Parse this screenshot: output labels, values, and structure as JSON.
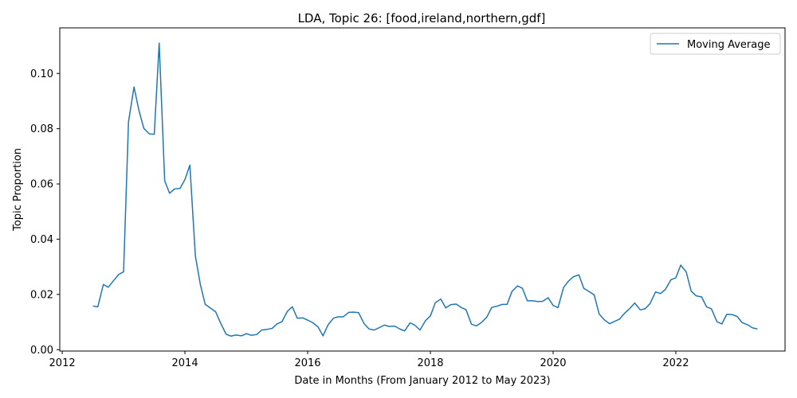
{
  "chart_data": {
    "type": "line",
    "title": "LDA, Topic 26: [food,ireland,northern,gdf]",
    "xlabel": "Date in Months (From January 2012 to May 2023)",
    "ylabel": "Topic Proportion",
    "xlim": [
      2011.96,
      2023.78
    ],
    "ylim": [
      -0.0005,
      0.1165
    ],
    "xticks": [
      2012,
      2014,
      2016,
      2018,
      2020,
      2022
    ],
    "yticks": [
      0.0,
      0.02,
      0.04,
      0.06,
      0.08,
      0.1
    ],
    "ytick_labels": [
      "0.00",
      "0.02",
      "0.04",
      "0.06",
      "0.08",
      "0.10"
    ],
    "grid": false,
    "legend_position": "top-right",
    "color": "#1f77b4",
    "series": [
      {
        "name": "Moving Average",
        "x": [
          2012.5,
          2012.58,
          2012.67,
          2012.75,
          2012.83,
          2012.92,
          2013.0,
          2013.08,
          2013.17,
          2013.25,
          2013.33,
          2013.42,
          2013.5,
          2013.58,
          2013.67,
          2013.75,
          2013.83,
          2013.92,
          2014.0,
          2014.08,
          2014.17,
          2014.25,
          2014.33,
          2014.42,
          2014.5,
          2014.58,
          2014.67,
          2014.75,
          2014.83,
          2014.92,
          2015.0,
          2015.08,
          2015.17,
          2015.25,
          2015.33,
          2015.42,
          2015.5,
          2015.58,
          2015.67,
          2015.75,
          2015.83,
          2015.92,
          2016.0,
          2016.08,
          2016.17,
          2016.25,
          2016.33,
          2016.42,
          2016.5,
          2016.58,
          2016.67,
          2016.75,
          2016.83,
          2016.92,
          2017.0,
          2017.08,
          2017.17,
          2017.25,
          2017.33,
          2017.42,
          2017.5,
          2017.58,
          2017.67,
          2017.75,
          2017.83,
          2017.92,
          2018.0,
          2018.08,
          2018.17,
          2018.25,
          2018.33,
          2018.42,
          2018.5,
          2018.58,
          2018.67,
          2018.75,
          2018.83,
          2018.92,
          2019.0,
          2019.08,
          2019.17,
          2019.25,
          2019.33,
          2019.42,
          2019.5,
          2019.58,
          2019.67,
          2019.75,
          2019.83,
          2019.92,
          2020.0,
          2020.08,
          2020.17,
          2020.25,
          2020.33,
          2020.42,
          2020.5,
          2020.58,
          2020.67,
          2020.75,
          2020.83,
          2020.92,
          2021.0,
          2021.08,
          2021.17,
          2021.25,
          2021.33,
          2021.42,
          2021.5,
          2021.58,
          2021.67,
          2021.75,
          2021.83,
          2021.92,
          2022.0,
          2022.08,
          2022.17,
          2022.25,
          2022.33,
          2022.42,
          2022.5,
          2022.58,
          2022.67,
          2022.75,
          2022.83,
          2022.92,
          2023.0,
          2023.08,
          2023.17,
          2023.25,
          2023.33
        ],
        "values": [
          0.0158,
          0.0155,
          0.0236,
          0.0226,
          0.0248,
          0.0272,
          0.0282,
          0.0825,
          0.0951,
          0.0866,
          0.0801,
          0.0781,
          0.078,
          0.111,
          0.0611,
          0.0566,
          0.0582,
          0.0584,
          0.0616,
          0.0668,
          0.0339,
          0.0237,
          0.0164,
          0.015,
          0.0137,
          0.0097,
          0.0056,
          0.0049,
          0.0053,
          0.005,
          0.0058,
          0.0052,
          0.0055,
          0.0071,
          0.0073,
          0.0077,
          0.0093,
          0.0101,
          0.0139,
          0.0155,
          0.0114,
          0.0115,
          0.0107,
          0.0098,
          0.0082,
          0.005,
          0.0089,
          0.0114,
          0.0119,
          0.0119,
          0.0135,
          0.0136,
          0.0134,
          0.0094,
          0.0075,
          0.0071,
          0.008,
          0.0089,
          0.0084,
          0.0085,
          0.0075,
          0.0068,
          0.0097,
          0.0088,
          0.0071,
          0.0105,
          0.0122,
          0.017,
          0.0183,
          0.0151,
          0.0163,
          0.0165,
          0.0153,
          0.0145,
          0.0092,
          0.0086,
          0.0098,
          0.0118,
          0.0153,
          0.0157,
          0.0164,
          0.0164,
          0.0211,
          0.0231,
          0.0222,
          0.0177,
          0.0177,
          0.0174,
          0.0175,
          0.0188,
          0.016,
          0.0152,
          0.0225,
          0.0248,
          0.0264,
          0.0271,
          0.0222,
          0.0211,
          0.0198,
          0.0129,
          0.0109,
          0.0094,
          0.0102,
          0.011,
          0.0133,
          0.0149,
          0.0169,
          0.0144,
          0.0148,
          0.0167,
          0.0209,
          0.0203,
          0.0218,
          0.0253,
          0.026,
          0.0306,
          0.0281,
          0.0212,
          0.0195,
          0.0191,
          0.0155,
          0.0148,
          0.0101,
          0.0093,
          0.0128,
          0.0127,
          0.012,
          0.0098,
          0.009,
          0.0079,
          0.0075
        ]
      }
    ]
  }
}
